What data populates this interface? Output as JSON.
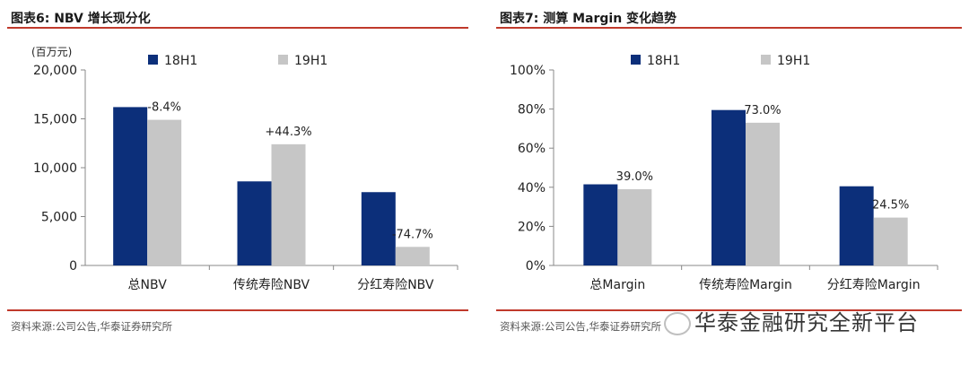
{
  "left": {
    "title": "图表6:  NBV 增长现分化",
    "source": "资料来源:公司公告,华泰证券研究所"
  },
  "right": {
    "title": "图表7:  测算 Margin 变化趋势",
    "source": "资料来源:公司公告,华泰证券研究所"
  },
  "watermark": "华泰金融研究全新平台",
  "colors": {
    "series1": "#0c2f7a",
    "series2": "#c6c6c6",
    "accent": "#c0392b"
  },
  "chart_data": [
    {
      "type": "bar",
      "unit_label": "(百万元)",
      "categories": [
        "总NBV",
        "传统寿险NBV",
        "分红寿险NBV"
      ],
      "series": [
        {
          "name": "18H1",
          "values": [
            16200,
            8600,
            7500
          ]
        },
        {
          "name": "19H1",
          "values": [
            14900,
            12400,
            1900
          ]
        }
      ],
      "annotations": [
        "-8.4%",
        "+44.3%",
        "-74.7%"
      ],
      "ylim": [
        0,
        20000
      ],
      "yticks": [
        "0",
        "5,000",
        "10,000",
        "15,000",
        "20,000"
      ],
      "legend": "top"
    },
    {
      "type": "bar",
      "categories": [
        "总Margin",
        "传统寿险Margin",
        "分红寿险Margin"
      ],
      "series": [
        {
          "name": "18H1",
          "values": [
            41.5,
            79.5,
            40.5
          ]
        },
        {
          "name": "19H1",
          "values": [
            39.0,
            73.0,
            24.5
          ]
        }
      ],
      "annotations": [
        "39.0%",
        "73.0%",
        "24.5%"
      ],
      "ylim": [
        0,
        100
      ],
      "yticks": [
        "0%",
        "20%",
        "40%",
        "60%",
        "80%",
        "100%"
      ],
      "legend": "top"
    }
  ]
}
